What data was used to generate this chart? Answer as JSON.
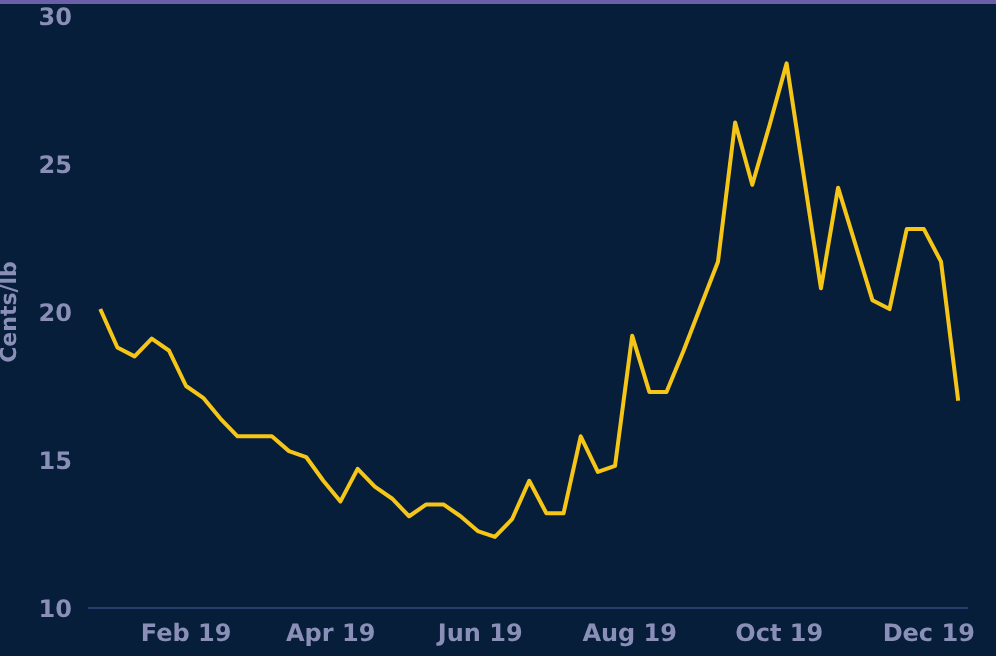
{
  "chart_data": {
    "type": "line",
    "ylabel": "Cents/lb",
    "x": [
      "2018-12-28",
      "2019-01-04",
      "2019-01-11",
      "2019-01-18",
      "2019-01-25",
      "2019-02-01",
      "2019-02-08",
      "2019-02-15",
      "2019-02-22",
      "2019-03-01",
      "2019-03-08",
      "2019-03-15",
      "2019-03-22",
      "2019-03-29",
      "2019-04-05",
      "2019-04-12",
      "2019-04-19",
      "2019-04-26",
      "2019-05-03",
      "2019-05-10",
      "2019-05-17",
      "2019-05-24",
      "2019-05-31",
      "2019-06-07",
      "2019-06-14",
      "2019-06-21",
      "2019-06-28",
      "2019-07-05",
      "2019-07-12",
      "2019-07-19",
      "2019-07-26",
      "2019-08-02",
      "2019-08-09",
      "2019-08-16",
      "2019-08-23",
      "2019-08-30",
      "2019-09-06",
      "2019-09-13",
      "2019-09-20",
      "2019-09-27",
      "2019-10-04",
      "2019-10-11",
      "2019-10-18",
      "2019-10-25",
      "2019-11-01",
      "2019-11-08",
      "2019-11-15",
      "2019-11-22",
      "2019-11-29",
      "2019-12-06",
      "2019-12-13"
    ],
    "series": [
      {
        "color": "#f5c518",
        "values": [
          20.1,
          18.8,
          18.5,
          19.1,
          18.7,
          17.5,
          17.1,
          16.4,
          15.8,
          15.8,
          15.8,
          15.3,
          15.1,
          14.3,
          13.6,
          14.7,
          14.1,
          13.7,
          13.1,
          13.5,
          13.5,
          13.1,
          12.6,
          12.4,
          13.0,
          14.3,
          13.2,
          13.2,
          15.8,
          14.6,
          14.8,
          19.2,
          17.3,
          17.3,
          18.7,
          20.2,
          21.7,
          26.4,
          24.3,
          26.3,
          28.4,
          24.6,
          20.8,
          24.2,
          22.3,
          20.4,
          20.1,
          22.8,
          22.8,
          21.7,
          17.0
        ]
      }
    ],
    "xticks": [
      {
        "value": "2019-02-01",
        "label": "Feb 19"
      },
      {
        "value": "2019-04-01",
        "label": "Apr 19"
      },
      {
        "value": "2019-06-01",
        "label": "Jun 19"
      },
      {
        "value": "2019-08-01",
        "label": "Aug 19"
      },
      {
        "value": "2019-10-01",
        "label": "Oct 19"
      },
      {
        "value": "2019-12-01",
        "label": "Dec 19"
      }
    ],
    "xlim": [
      "2018-12-23",
      "2019-12-17"
    ],
    "ylim": [
      10,
      30
    ],
    "yticks": [
      10,
      15,
      20,
      25,
      30
    ],
    "grid": false,
    "legend": false,
    "marker": "none",
    "line_style": "solid"
  }
}
